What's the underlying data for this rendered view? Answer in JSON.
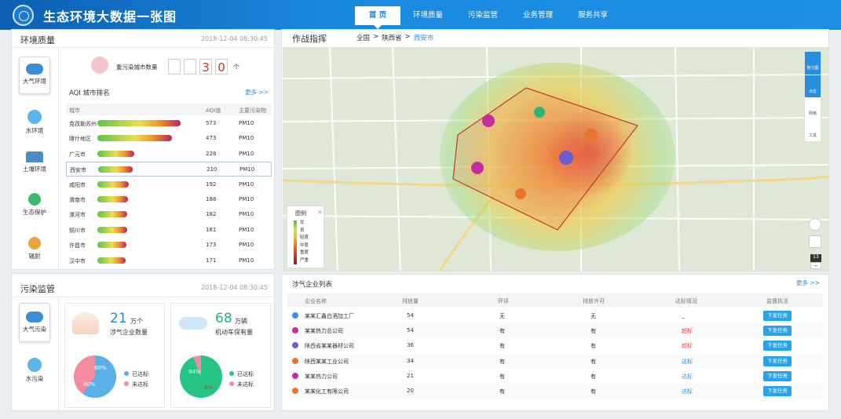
{
  "header": {
    "title": "生态环境大数据一张图",
    "nav": [
      "首 页",
      "环境质量",
      "污染监管",
      "业务管理",
      "服务共享"
    ]
  },
  "env": {
    "title": "环境质量",
    "time": "2018-12-04  08:30:45",
    "tabs": [
      "大气环境",
      "水环境",
      "土壤环境",
      "生态保护",
      "辐射"
    ],
    "heavy_label": "重污染城市数量",
    "heavy_digits": [
      "",
      "",
      "3",
      "0"
    ],
    "heavy_unit": "个",
    "rank_title": "AQI 城市排名",
    "more": "更多 >>",
    "cols": [
      "城市",
      "AQI值",
      "主要污染物"
    ],
    "rows": [
      {
        "city": "克孜勒苏州",
        "aqi": "573",
        "pol": "PM10",
        "frac": 0.95
      },
      {
        "city": "喀什地区",
        "aqi": "473",
        "pol": "PM10",
        "frac": 0.85
      },
      {
        "city": "广元市",
        "aqi": "228",
        "pol": "PM10",
        "frac": 0.42
      },
      {
        "city": "西安市",
        "aqi": "210",
        "pol": "PM10",
        "frac": 0.39
      },
      {
        "city": "咸阳市",
        "aqi": "192",
        "pol": "PM10",
        "frac": 0.36
      },
      {
        "city": "渭南市",
        "aqi": "188",
        "pol": "PM10",
        "frac": 0.35
      },
      {
        "city": "漯河市",
        "aqi": "182",
        "pol": "PM10",
        "frac": 0.34
      },
      {
        "city": "铜川市",
        "aqi": "181",
        "pol": "PM10",
        "frac": 0.34
      },
      {
        "city": "许昌市",
        "aqi": "173",
        "pol": "PM10",
        "frac": 0.33
      },
      {
        "city": "汉中市",
        "aqi": "171",
        "pol": "PM10",
        "frac": 0.32
      }
    ]
  },
  "pollution": {
    "title": "污染监管",
    "time": "2018-12-04  08:30:45",
    "tabs": [
      "大气污染",
      "水污染"
    ],
    "ent_count": "21",
    "ent_unit": "万个",
    "ent_label": "涉气企业数量",
    "veh_count": "68",
    "veh_unit": "万辆",
    "veh_label": "机动车保有量",
    "pie1": {
      "a": "60%",
      "b": "40%",
      "legend": [
        "已达标",
        "未达标"
      ]
    },
    "pie2": {
      "a": "94%",
      "b": "6%",
      "legend": [
        "已达标",
        "未达标"
      ]
    }
  },
  "map": {
    "title": "作战指挥",
    "crumb": [
      "全国",
      ">",
      "陕西省",
      ">",
      "西安市"
    ],
    "legend_title": "图例",
    "legend": [
      "优",
      "良",
      "轻度",
      "中度",
      "重度",
      "严重"
    ],
    "tools": [
      "热力图",
      "点位",
      "网格",
      "工具"
    ],
    "scale": "13"
  },
  "enterprise": {
    "title": "涉气企业列表",
    "more": "更多 >>",
    "cols": [
      "企业名称",
      "排放量",
      "环评",
      "排放许可",
      "达标情况",
      "监督执法"
    ],
    "rows": [
      {
        "name": "某某汇鑫白酒加工厂",
        "amount": "54",
        "eia": "无",
        "permit": "无",
        "status": "_",
        "action": "下发任务"
      },
      {
        "name": "某某热力总公司",
        "amount": "54",
        "eia": "有",
        "permit": "有",
        "status": "超标",
        "action": "下发任务"
      },
      {
        "name": "陕西省某某器材公司",
        "amount": "36",
        "eia": "有",
        "permit": "有",
        "status": "超标",
        "action": "下发任务"
      },
      {
        "name": "陕西某某工业公司",
        "amount": "34",
        "eia": "有",
        "permit": "有",
        "status": "达标",
        "action": "下发任务"
      },
      {
        "name": "某某热力公司",
        "amount": "21",
        "eia": "有",
        "permit": "有",
        "status": "达标",
        "action": "下发任务"
      },
      {
        "name": "某某化工有限公司",
        "amount": "20",
        "eia": "有",
        "permit": "有",
        "status": "达标",
        "action": "下发任务"
      }
    ]
  }
}
